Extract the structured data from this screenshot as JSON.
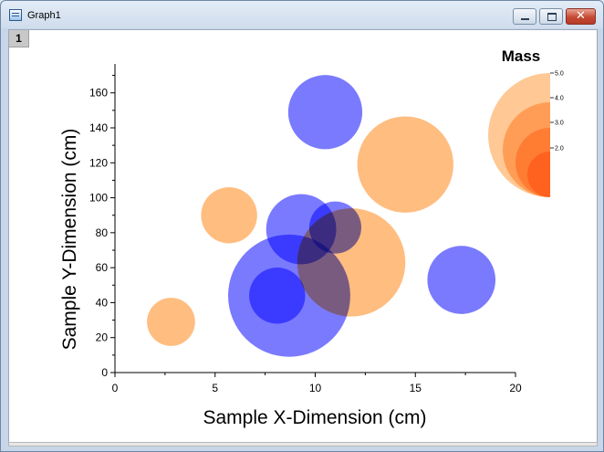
{
  "window": {
    "title": "Graph1",
    "layer_label": "1",
    "close_glyph": "✕"
  },
  "chart_data": {
    "type": "scatter",
    "variant": "bubble",
    "xlabel": "Sample X-Dimension (cm)",
    "ylabel": "Sample Y-Dimension (cm)",
    "xlim": [
      0,
      20
    ],
    "ylim": [
      0,
      175
    ],
    "x_ticks": [
      0,
      5,
      10,
      15,
      20
    ],
    "y_ticks": [
      0,
      20,
      40,
      60,
      80,
      100,
      120,
      140,
      160
    ],
    "grid": false,
    "series": [
      {
        "color": "#ff9a3c",
        "points": [
          {
            "x": 2.8,
            "y": 29,
            "r": 1.2
          },
          {
            "x": 5.7,
            "y": 90,
            "r": 1.4
          },
          {
            "x": 11.8,
            "y": 63,
            "r": 2.7
          },
          {
            "x": 14.5,
            "y": 119,
            "r": 2.4
          }
        ]
      },
      {
        "color": "#3333ff",
        "points": [
          {
            "x": 10.5,
            "y": 149,
            "r": 1.85
          },
          {
            "x": 9.3,
            "y": 82,
            "r": 1.75
          },
          {
            "x": 11.0,
            "y": 83,
            "r": 1.3
          },
          {
            "x": 8.1,
            "y": 44,
            "r": 1.4
          },
          {
            "x": 8.7,
            "y": 44,
            "r": 3.05
          },
          {
            "x": 17.3,
            "y": 53,
            "r": 1.7
          }
        ]
      }
    ],
    "legend": {
      "title": "Mass",
      "position": "top-right",
      "labels": [
        "5.0",
        "4.0",
        "3.0",
        "2.0"
      ]
    }
  }
}
